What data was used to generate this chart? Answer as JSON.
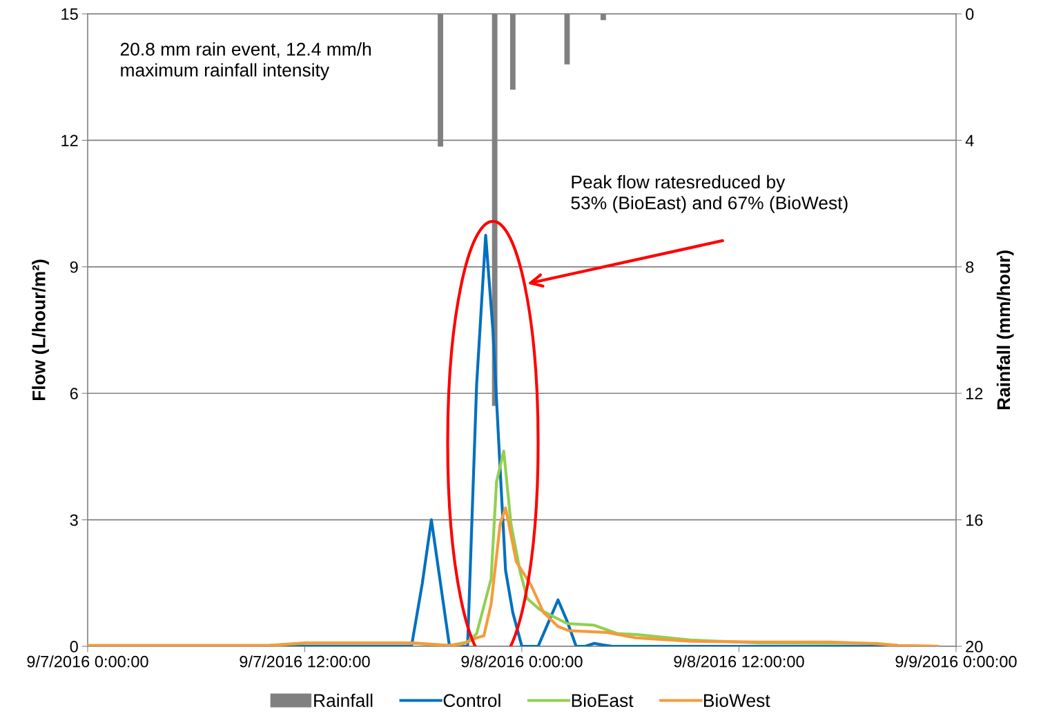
{
  "chart_data": {
    "type": "line",
    "ylabel": "Flow (L/hour/m²)",
    "y2label": "Rainfall (mm/hour)",
    "annotations": [
      "20.8 mm rain event, 12.4 mm/h\nmaximum rainfall intensity",
      "Peak flow ratesreduced by\n53% (BioEast) and 67% (BioWest)"
    ],
    "xlim": [
      "2016-09-07T00:00",
      "2016-09-09T00:00"
    ],
    "xticks": [
      {
        "value": "2016-09-07T00:00",
        "label": "9/7/2016 0:00:00"
      },
      {
        "value": "2016-09-07T12:00",
        "label": "9/7/2016 12:00:00"
      },
      {
        "value": "2016-09-08T00:00",
        "label": "9/8/2016 0:00:00"
      },
      {
        "value": "2016-09-08T12:00",
        "label": "9/8/2016 12:00:00"
      },
      {
        "value": "2016-09-09T00:00",
        "label": "9/9/2016 0:00:00"
      }
    ],
    "ylim": [
      0,
      15
    ],
    "yticks": [
      0,
      3,
      6,
      9,
      12,
      15
    ],
    "y2lim": [
      20,
      0
    ],
    "y2ticks": [
      0,
      4,
      8,
      12,
      16,
      20
    ],
    "grid": "y",
    "legend": "bottom",
    "series": [
      {
        "name": "Rainfall",
        "type": "bar",
        "axis": "y2",
        "color": "#808080",
        "x": [
          "2016-09-07T19:30",
          "2016-09-07T22:30",
          "2016-09-07T23:30",
          "2016-09-08T02:30",
          "2016-09-08T04:30"
        ],
        "values": [
          4.2,
          12.4,
          2.4,
          1.6,
          0.2
        ]
      },
      {
        "name": "Control",
        "color": "#0070c0",
        "x": [
          "2016-09-07T00:00",
          "2016-09-07T17:54",
          "2016-09-07T18:30",
          "2016-09-07T19:00",
          "2016-09-07T19:30",
          "2016-09-07T20:00",
          "2016-09-07T21:00",
          "2016-09-07T21:30",
          "2016-09-07T22:00",
          "2016-09-07T22:24",
          "2016-09-07T22:48",
          "2016-09-07T23:06",
          "2016-09-07T23:30",
          "2016-09-08T00:00",
          "2016-09-08T00:54",
          "2016-09-08T01:30",
          "2016-09-08T02:00",
          "2016-09-08T02:30",
          "2016-09-08T03:00",
          "2016-09-08T03:30",
          "2016-09-08T04:00",
          "2016-09-08T04:30",
          "2016-09-08T05:00",
          "2016-09-08T23:00"
        ],
        "values": [
          0,
          0,
          1.5,
          3.0,
          1.5,
          0,
          0,
          6.2,
          9.75,
          7.5,
          4.2,
          1.8,
          0.8,
          0,
          0,
          0.6,
          1.1,
          0.6,
          0,
          0,
          0.07,
          0.03,
          0,
          0
        ]
      },
      {
        "name": "BioEast",
        "color": "#92d050",
        "x": [
          "2016-09-07T00:00",
          "2016-09-07T10:00",
          "2016-09-07T12:00",
          "2016-09-07T18:00",
          "2016-09-07T20:00",
          "2016-09-07T21:00",
          "2016-09-07T21:30",
          "2016-09-07T22:18",
          "2016-09-07T22:36",
          "2016-09-07T23:00",
          "2016-09-07T23:24",
          "2016-09-07T23:54",
          "2016-09-08T00:18",
          "2016-09-08T01:00",
          "2016-09-08T02:30",
          "2016-09-08T04:00",
          "2016-09-08T05:18",
          "2016-09-08T06:18",
          "2016-09-08T09:18",
          "2016-09-08T13:06",
          "2016-09-08T19:36",
          "2016-09-08T20:48",
          "2016-09-08T23:00"
        ],
        "values": [
          0.02,
          0.02,
          0.07,
          0.07,
          0.02,
          0.1,
          0.3,
          1.6,
          3.9,
          4.63,
          2.9,
          1.78,
          1.13,
          0.87,
          0.54,
          0.5,
          0.3,
          0.28,
          0.15,
          0.08,
          0.07,
          0.02,
          0
        ]
      },
      {
        "name": "BioWest",
        "color": "#f79a3a",
        "x": [
          "2016-09-07T00:00",
          "2016-09-07T10:00",
          "2016-09-07T12:00",
          "2016-09-07T18:00",
          "2016-09-07T20:00",
          "2016-09-07T20:42",
          "2016-09-07T21:30",
          "2016-09-07T21:54",
          "2016-09-07T22:18",
          "2016-09-07T22:48",
          "2016-09-07T23:06",
          "2016-09-07T23:42",
          "2016-09-08T00:30",
          "2016-09-08T01:12",
          "2016-09-08T02:00",
          "2016-09-08T02:36",
          "2016-09-08T04:42",
          "2016-09-08T06:18",
          "2016-09-08T09:18",
          "2016-09-08T13:06",
          "2016-09-08T17:00",
          "2016-09-08T19:12",
          "2016-09-08T20:48",
          "2016-09-08T23:00"
        ],
        "values": [
          0.02,
          0.02,
          0.08,
          0.08,
          0.02,
          0.05,
          0.2,
          0.25,
          1.0,
          2.9,
          3.28,
          2.0,
          1.46,
          0.8,
          0.47,
          0.37,
          0.33,
          0.2,
          0.12,
          0.1,
          0.1,
          0.07,
          0.02,
          0
        ]
      }
    ]
  }
}
